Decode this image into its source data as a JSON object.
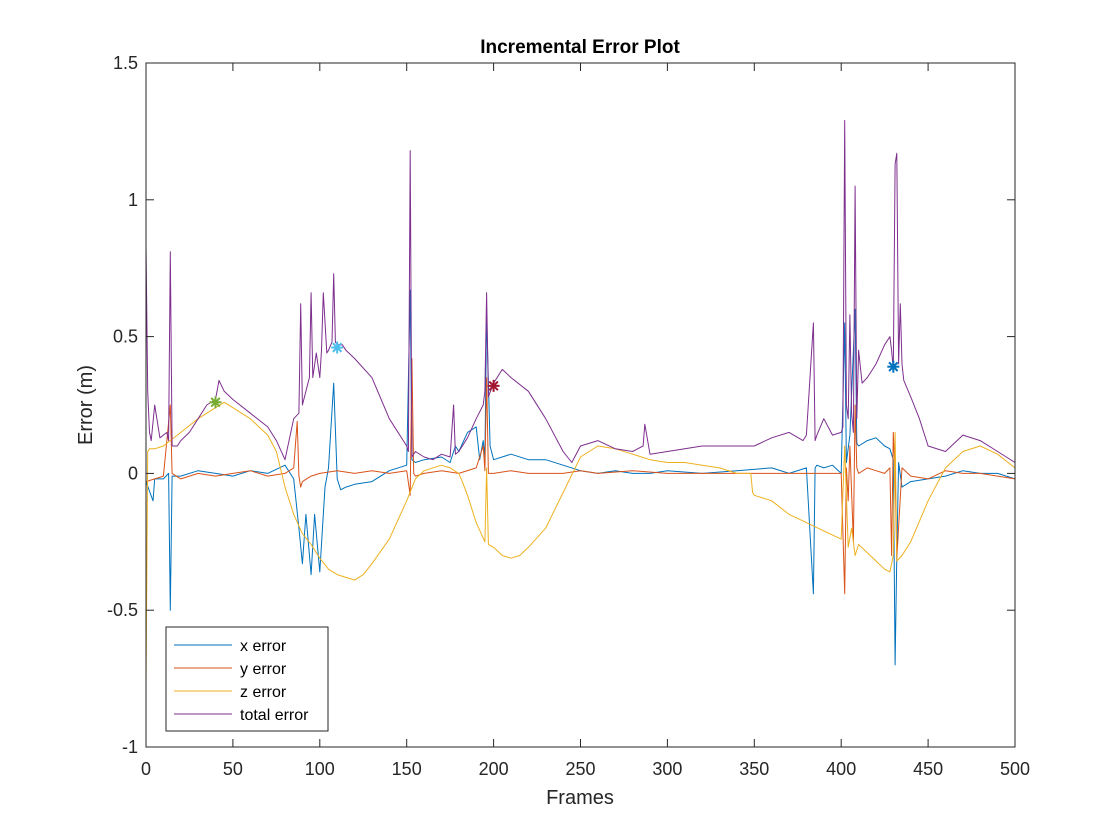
{
  "chart_data": {
    "type": "line",
    "title": "Incremental Error Plot",
    "xlabel": "Frames",
    "ylabel": "Error (m)",
    "xlim": [
      0,
      500
    ],
    "ylim": [
      -1,
      1.5
    ],
    "xticks": [
      0,
      50,
      100,
      150,
      200,
      250,
      300,
      350,
      400,
      450,
      500
    ],
    "yticks": [
      -1,
      -0.5,
      0,
      0.5,
      1,
      1.5
    ],
    "xtick_labels": [
      "0",
      "50",
      "100",
      "150",
      "200",
      "250",
      "300",
      "350",
      "400",
      "450",
      "500"
    ],
    "ytick_labels": [
      "-1",
      "-0.5",
      "0",
      "0.5",
      "1",
      "1.5"
    ],
    "grid": false,
    "legend_position": "bottom-left",
    "series": [
      {
        "name": "x error",
        "color": "#0072BD",
        "x": [
          0,
          4,
          5,
          10,
          13,
          14,
          15,
          20,
          30,
          40,
          50,
          60,
          70,
          80,
          85,
          88,
          90,
          92,
          95,
          97,
          100,
          103,
          105,
          108,
          110,
          112,
          115,
          120,
          130,
          140,
          150,
          152,
          153,
          155,
          160,
          170,
          175,
          178,
          180,
          185,
          190,
          192,
          194,
          195,
          196,
          198,
          200,
          210,
          220,
          230,
          240,
          250,
          260,
          270,
          280,
          290,
          300,
          320,
          340,
          360,
          370,
          380,
          384,
          385,
          386,
          390,
          395,
          400,
          402,
          403,
          405,
          408,
          409,
          410,
          415,
          420,
          425,
          428,
          430,
          431,
          432,
          433,
          435,
          440,
          450,
          460,
          470,
          480,
          490,
          500
        ],
        "y": [
          -0.03,
          -0.1,
          -0.02,
          -0.02,
          0.0,
          -0.5,
          -0.01,
          -0.01,
          0.01,
          0.0,
          -0.01,
          0.01,
          0.0,
          0.03,
          -0.02,
          -0.2,
          -0.33,
          -0.15,
          -0.37,
          -0.15,
          -0.36,
          -0.05,
          0.02,
          0.33,
          -0.02,
          -0.06,
          -0.05,
          -0.04,
          -0.03,
          0.01,
          0.03,
          0.67,
          0.05,
          0.04,
          0.05,
          0.06,
          0.04,
          0.1,
          0.08,
          0.15,
          0.17,
          0.05,
          0.12,
          0.06,
          0.58,
          0.1,
          0.05,
          0.07,
          0.05,
          0.05,
          0.03,
          0.01,
          0.0,
          0.01,
          0.0,
          0.0,
          0.01,
          0.0,
          0.01,
          0.02,
          0.0,
          0.02,
          -0.44,
          0.02,
          0.03,
          0.02,
          0.03,
          0.0,
          0.55,
          0.04,
          0.14,
          0.6,
          0.11,
          0.1,
          0.12,
          0.13,
          0.1,
          0.09,
          0.05,
          -0.7,
          -0.3,
          0.04,
          -0.05,
          -0.03,
          -0.02,
          -0.01,
          0.01,
          0.0,
          0.0,
          -0.02
        ]
      },
      {
        "name": "y error",
        "color": "#D95319",
        "x": [
          0,
          5,
          10,
          14,
          15,
          20,
          30,
          40,
          50,
          60,
          70,
          80,
          85,
          87,
          88,
          89,
          90,
          95,
          100,
          110,
          120,
          130,
          140,
          150,
          152,
          153,
          154,
          155,
          160,
          170,
          180,
          190,
          194,
          195,
          196,
          197,
          200,
          210,
          220,
          230,
          240,
          250,
          260,
          280,
          300,
          320,
          340,
          360,
          380,
          400,
          402,
          403,
          404,
          405,
          407,
          408,
          409,
          410,
          415,
          420,
          425,
          428,
          429,
          430,
          431,
          432,
          435,
          440,
          450,
          460,
          470,
          480,
          490,
          500
        ],
        "y": [
          -0.03,
          -0.02,
          -0.01,
          0.25,
          0.0,
          -0.02,
          0.0,
          -0.01,
          0.0,
          0.01,
          -0.01,
          0.0,
          0.02,
          0.19,
          -0.01,
          -0.05,
          -0.03,
          -0.01,
          0.0,
          0.01,
          0.0,
          0.01,
          0.0,
          0.01,
          -0.08,
          0.42,
          0.0,
          -0.01,
          0.0,
          0.01,
          0.0,
          0.02,
          0.1,
          0.01,
          0.35,
          0.0,
          0.0,
          0.01,
          0.0,
          0.0,
          0.0,
          0.01,
          0.0,
          0.01,
          0.0,
          0.0,
          0.0,
          0.0,
          0.0,
          0.0,
          -0.44,
          0.02,
          -0.1,
          0.1,
          -0.25,
          0.25,
          0.02,
          0.0,
          0.02,
          0.01,
          0.0,
          0.02,
          -0.3,
          0.15,
          0.0,
          -0.31,
          0.02,
          -0.01,
          -0.02,
          0.01,
          0.0,
          0.0,
          -0.01,
          -0.02
        ]
      },
      {
        "name": "z error",
        "color": "#EDB120",
        "x": [
          0,
          1,
          2,
          5,
          10,
          20,
          30,
          40,
          45,
          50,
          60,
          70,
          75,
          80,
          85,
          90,
          95,
          100,
          105,
          110,
          115,
          120,
          125,
          130,
          140,
          150,
          155,
          160,
          170,
          175,
          180,
          182,
          185,
          190,
          195,
          196,
          197,
          200,
          205,
          210,
          215,
          220,
          230,
          240,
          250,
          260,
          270,
          280,
          290,
          300,
          310,
          320,
          330,
          340,
          348,
          349,
          350,
          360,
          370,
          380,
          390,
          400,
          402,
          404,
          406,
          408,
          410,
          420,
          425,
          428,
          430,
          431,
          432,
          435,
          440,
          450,
          460,
          470,
          480,
          490,
          500
        ],
        "y": [
          -0.78,
          0.08,
          0.09,
          0.09,
          0.1,
          0.15,
          0.2,
          0.24,
          0.26,
          0.24,
          0.2,
          0.14,
          0.08,
          -0.05,
          -0.15,
          -0.22,
          -0.26,
          -0.31,
          -0.35,
          -0.37,
          -0.38,
          -0.39,
          -0.37,
          -0.33,
          -0.24,
          -0.1,
          -0.02,
          0.01,
          0.03,
          0.02,
          0.0,
          -0.03,
          -0.08,
          -0.18,
          -0.25,
          0.02,
          -0.26,
          -0.27,
          -0.3,
          -0.31,
          -0.3,
          -0.27,
          -0.2,
          -0.07,
          0.06,
          0.1,
          0.09,
          0.07,
          0.05,
          0.04,
          0.04,
          0.03,
          0.02,
          0.0,
          0.0,
          -0.07,
          -0.08,
          -0.1,
          -0.15,
          -0.18,
          -0.21,
          -0.24,
          0.1,
          -0.27,
          -0.2,
          -0.3,
          -0.26,
          -0.32,
          -0.35,
          -0.36,
          -0.3,
          0.15,
          -0.32,
          -0.3,
          -0.25,
          -0.1,
          0.02,
          0.08,
          0.1,
          0.07,
          0.02
        ]
      },
      {
        "name": "total error",
        "color": "#7E2F8E",
        "x": [
          0,
          1,
          2,
          3,
          5,
          8,
          12,
          13,
          14,
          15,
          18,
          20,
          25,
          30,
          35,
          40,
          42,
          45,
          50,
          60,
          70,
          75,
          80,
          85,
          88,
          89,
          90,
          92,
          94,
          95,
          96,
          98,
          100,
          101,
          102,
          104,
          105,
          107,
          108,
          109,
          110,
          113,
          115,
          120,
          130,
          140,
          150,
          151,
          152,
          153,
          155,
          160,
          165,
          170,
          175,
          177,
          178,
          180,
          185,
          190,
          194,
          195,
          196,
          197,
          200,
          205,
          210,
          220,
          230,
          240,
          245,
          250,
          260,
          270,
          280,
          286,
          287,
          290,
          300,
          320,
          340,
          350,
          360,
          370,
          378,
          380,
          384,
          385,
          386,
          390,
          395,
          400,
          401,
          402,
          403,
          404,
          405,
          406,
          407,
          408,
          409,
          410,
          412,
          415,
          420,
          425,
          428,
          429,
          430,
          431,
          432,
          433,
          434,
          435,
          436,
          440,
          445,
          450,
          460,
          470,
          480,
          490,
          500
        ],
        "y": [
          0.84,
          0.3,
          0.15,
          0.12,
          0.25,
          0.13,
          0.15,
          0.12,
          0.81,
          0.1,
          0.1,
          0.12,
          0.15,
          0.2,
          0.25,
          0.27,
          0.34,
          0.3,
          0.27,
          0.22,
          0.17,
          0.12,
          0.05,
          0.2,
          0.22,
          0.62,
          0.25,
          0.3,
          0.35,
          0.66,
          0.35,
          0.44,
          0.35,
          0.45,
          0.66,
          0.44,
          0.45,
          0.48,
          0.73,
          0.48,
          0.47,
          0.47,
          0.45,
          0.42,
          0.35,
          0.2,
          0.1,
          0.08,
          1.18,
          0.06,
          0.08,
          0.06,
          0.05,
          0.07,
          0.06,
          0.25,
          0.07,
          0.08,
          0.13,
          0.2,
          0.25,
          0.3,
          0.66,
          0.28,
          0.33,
          0.38,
          0.35,
          0.3,
          0.2,
          0.08,
          0.04,
          0.1,
          0.12,
          0.09,
          0.08,
          0.1,
          0.18,
          0.07,
          0.08,
          0.1,
          0.1,
          0.1,
          0.13,
          0.15,
          0.12,
          0.14,
          0.55,
          0.12,
          0.14,
          0.2,
          0.14,
          0.15,
          0.17,
          1.29,
          0.25,
          0.2,
          0.58,
          0.22,
          0.15,
          1.05,
          0.2,
          0.45,
          0.33,
          0.35,
          0.4,
          0.47,
          0.5,
          0.45,
          0.38,
          1.13,
          1.17,
          0.4,
          0.62,
          0.4,
          0.34,
          0.28,
          0.2,
          0.1,
          0.08,
          0.14,
          0.12,
          0.08,
          0.04
        ]
      }
    ],
    "markers": [
      {
        "x": 40,
        "y": 0.26,
        "color": "#77AC30",
        "symbol": "*"
      },
      {
        "x": 110,
        "y": 0.46,
        "color": "#4DBEEE",
        "symbol": "*"
      },
      {
        "x": 200,
        "y": 0.32,
        "color": "#A2142F",
        "symbol": "*"
      },
      {
        "x": 430,
        "y": 0.39,
        "color": "#0072BD",
        "symbol": "*"
      }
    ]
  }
}
